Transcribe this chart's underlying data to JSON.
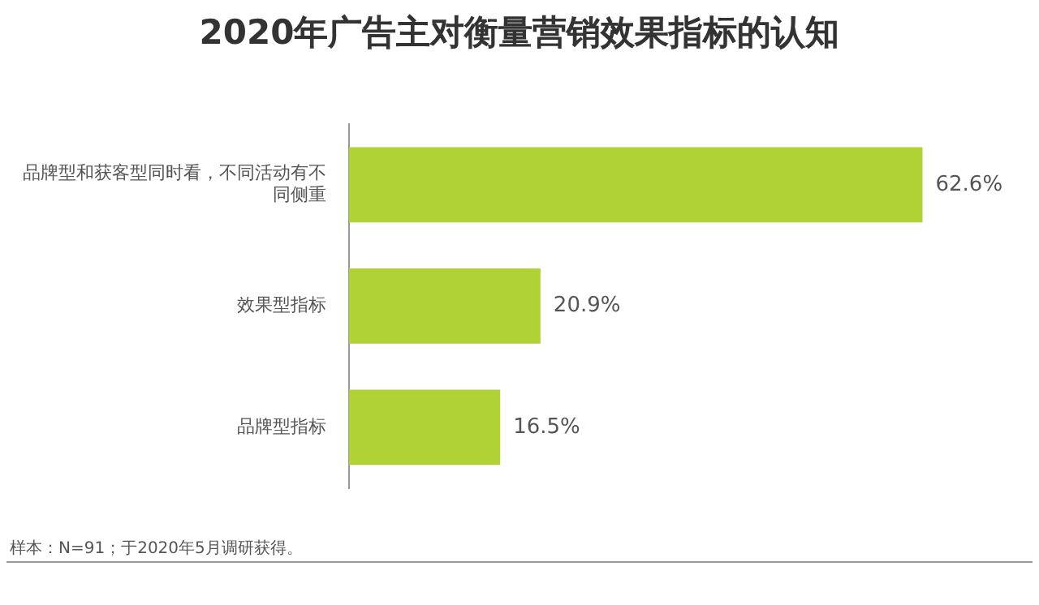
{
  "chart_data": {
    "type": "bar",
    "orientation": "horizontal",
    "title": "2020年广告主对衡量营销效果指标的认知",
    "categories": [
      "品牌型和获客型同时看，不同活动有不同侧重",
      "效果型指标",
      "品牌型指标"
    ],
    "values": [
      62.6,
      20.9,
      16.5
    ],
    "color": "#b0d235",
    "data_labels": true,
    "value_labels": [
      "62.6%",
      "20.9%",
      "16.5%"
    ],
    "annotations": [
      "样本：N=91；于2020年5月调研获得。"
    ]
  }
}
